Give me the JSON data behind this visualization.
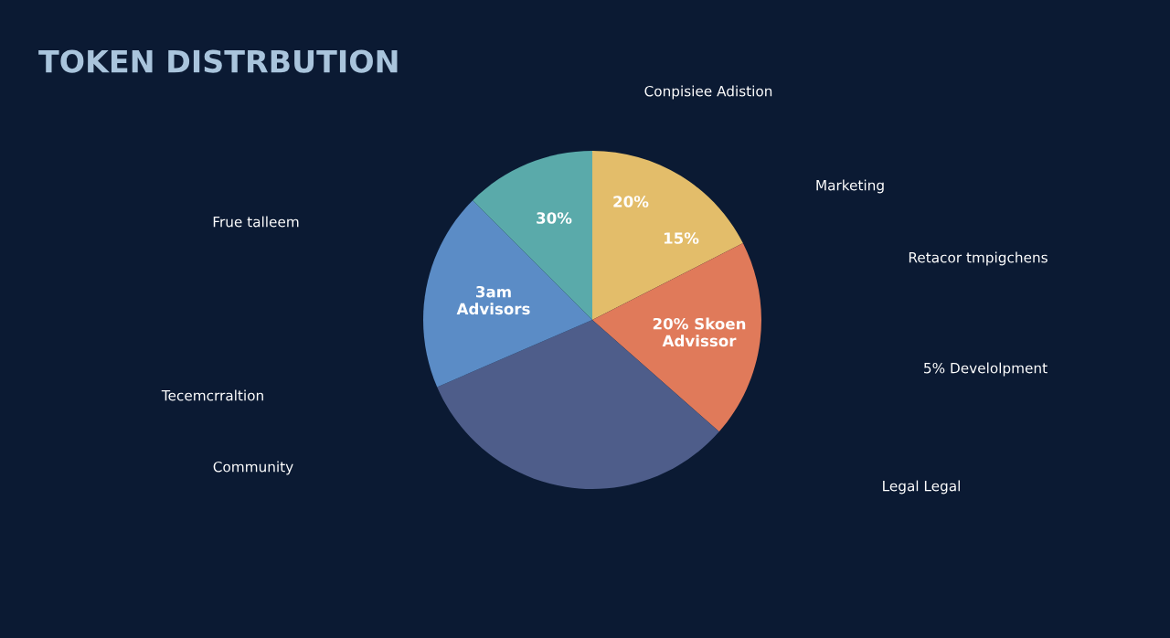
{
  "chart_data": {
    "type": "pie",
    "title": "TOKEN DISTRBUTION",
    "categories": [
      null,
      null,
      null,
      null,
      null
    ],
    "values": [
      17.5,
      19,
      32,
      19,
      12.5
    ],
    "colors": [
      "#e3bd6a",
      "#e07a5a",
      "#4e5d8a",
      "#5b8cc6",
      "#5aaaaa"
    ],
    "annotations": [
      "30%",
      "20%",
      "15%",
      "20% Skoen\nAdvissor",
      "3am\nAdvisors",
      "Conpisiee Adistion",
      "Marketing",
      "Retacor tmpigchens",
      "5% Develolpment",
      "Frue talleem",
      "Tecemcrraltion",
      "Community",
      "Legal Legal"
    ]
  }
}
